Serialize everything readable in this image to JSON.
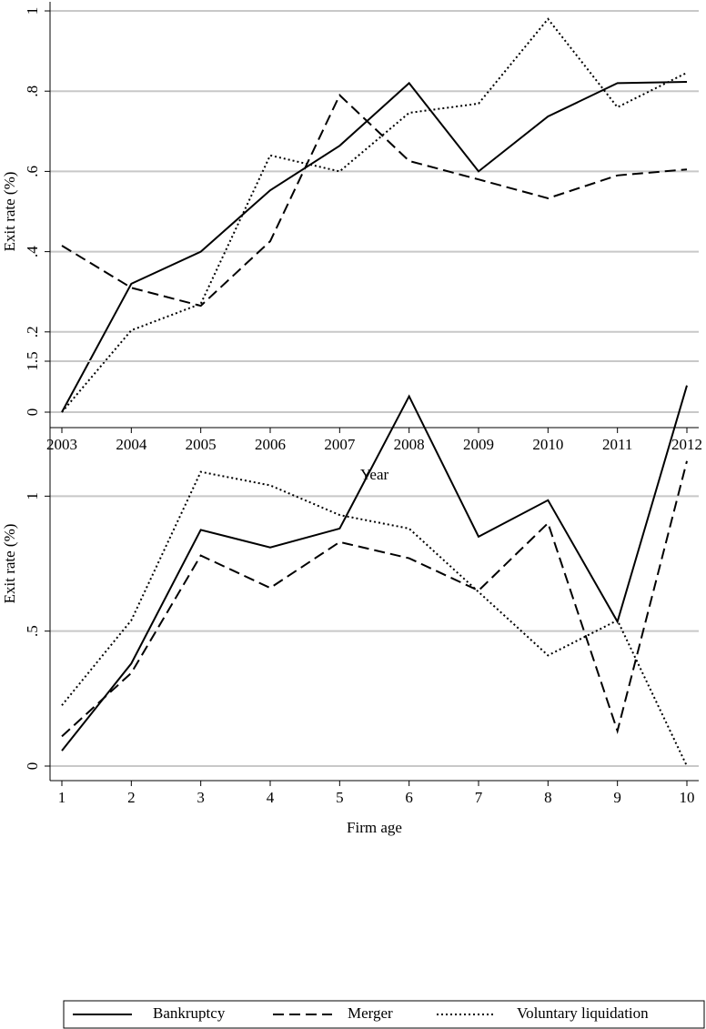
{
  "chart_data": [
    {
      "type": "line",
      "x": [
        2003,
        2004,
        2005,
        2006,
        2007,
        2008,
        2009,
        2010,
        2011,
        2012
      ],
      "xlim": [
        2003,
        2012
      ],
      "xticks": [
        2003,
        2004,
        2005,
        2006,
        2007,
        2008,
        2009,
        2010,
        2011,
        2012
      ],
      "ylim": [
        0,
        1
      ],
      "yticks": [
        0,
        {
          "value": 0.2,
          "label": ".2"
        },
        {
          "value": 0.4,
          "label": ".4"
        },
        {
          "value": 0.6,
          "label": ".6"
        },
        {
          "value": 0.8,
          "label": ".8"
        },
        1
      ],
      "x_label": "Year",
      "y_label": "Exit rate (%)",
      "grid": true,
      "series": [
        {
          "name": "Bankruptcy",
          "color": "#000000",
          "dash": "solid",
          "values": [
            0,
            0.32,
            0.4,
            0.553,
            0.664,
            0.82,
            0.6,
            0.737,
            0.82,
            0.823
          ]
        },
        {
          "name": "Merger",
          "color": "#000000",
          "dash": "dashed",
          "values": [
            0.415,
            0.31,
            0.265,
            0.426,
            0.79,
            0.626,
            0.58,
            0.533,
            0.59,
            0.605
          ]
        },
        {
          "name": "Voluntary liquidation",
          "color": "#000000",
          "dash": "dotted",
          "values": [
            0,
            0.204,
            0.27,
            0.64,
            0.6,
            0.746,
            0.769,
            0.98,
            0.76,
            0.846
          ]
        }
      ]
    },
    {
      "type": "line",
      "x": [
        1,
        2,
        3,
        4,
        5,
        6,
        7,
        8,
        9,
        10
      ],
      "xlim": [
        1,
        10
      ],
      "xticks": [
        1,
        2,
        3,
        4,
        5,
        6,
        7,
        8,
        9,
        10
      ],
      "ylim": [
        0,
        1.5
      ],
      "yticks": [
        0,
        {
          "value": 0.5,
          "label": ".5"
        },
        1,
        1.5
      ],
      "x_label": "Firm age",
      "y_label": "Exit rate (%)",
      "grid": true,
      "series": [
        {
          "color": "#000000",
          "dash": "solid",
          "values": [
            0.057,
            0.38,
            0.875,
            0.81,
            0.88,
            1.37,
            0.85,
            0.985,
            0.535,
            1.41
          ]
        },
        {
          "color": "#000000",
          "dash": "dashed",
          "values": [
            0.11,
            0.345,
            0.78,
            0.66,
            0.83,
            0.77,
            0.65,
            0.9,
            0.13,
            1.13
          ]
        },
        {
          "color": "#000000",
          "dash": "dotted",
          "values": [
            0.225,
            0.54,
            1.09,
            1.04,
            0.93,
            0.88,
            0.645,
            0.41,
            0.54,
            0
          ]
        }
      ]
    }
  ]
}
